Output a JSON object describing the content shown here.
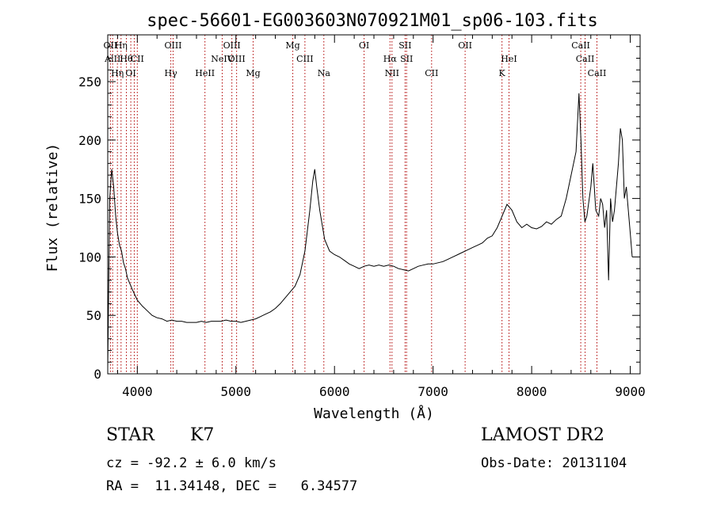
{
  "chart_data": {
    "type": "line",
    "title": "spec-56601-EG003603N070921M01_sp06-103.fits",
    "xlabel": "Wavelength (Å)",
    "ylabel": "Flux (relative)",
    "xlim": [
      3700,
      9100
    ],
    "ylim": [
      0,
      290
    ],
    "x_ticks": [
      4000,
      5000,
      6000,
      7000,
      8000,
      9000
    ],
    "y_ticks": [
      0,
      50,
      100,
      150,
      200,
      250
    ],
    "grid": false,
    "line_color": "#000000",
    "marker_color": "#b00000",
    "series": [
      {
        "x": [
          3700,
          3720,
          3740,
          3760,
          3780,
          3800,
          3820,
          3840,
          3860,
          3880,
          3900,
          3950,
          4000,
          4050,
          4100,
          4150,
          4200,
          4250,
          4300,
          4350,
          4400,
          4450,
          4500,
          4550,
          4600,
          4650,
          4700,
          4750,
          4800,
          4850,
          4900,
          4950,
          5000,
          5050,
          5100,
          5150,
          5200,
          5250,
          5300,
          5350,
          5400,
          5450,
          5500,
          5550,
          5600,
          5650,
          5700,
          5750,
          5780,
          5800,
          5820,
          5850,
          5900,
          5950,
          6000,
          6050,
          6100,
          6150,
          6200,
          6250,
          6300,
          6350,
          6400,
          6450,
          6500,
          6550,
          6600,
          6650,
          6700,
          6750,
          6800,
          6850,
          6900,
          6950,
          7000,
          7050,
          7100,
          7150,
          7200,
          7250,
          7300,
          7350,
          7400,
          7450,
          7500,
          7550,
          7600,
          7650,
          7700,
          7750,
          7800,
          7850,
          7900,
          7950,
          8000,
          8050,
          8100,
          8150,
          8200,
          8250,
          8300,
          8350,
          8400,
          8450,
          8480,
          8500,
          8520,
          8540,
          8560,
          8600,
          8620,
          8650,
          8680,
          8700,
          8720,
          8740,
          8760,
          8780,
          8800,
          8820,
          8840,
          8860,
          8880,
          8900,
          8920,
          8940,
          8960,
          8980,
          9000,
          9020
        ],
        "values": [
          5,
          150,
          175,
          160,
          135,
          120,
          110,
          105,
          95,
          90,
          82,
          72,
          63,
          58,
          54,
          50,
          48,
          47,
          45,
          46,
          45,
          45,
          44,
          44,
          44,
          45,
          44,
          45,
          45,
          45,
          46,
          45,
          45,
          44,
          45,
          46,
          47,
          49,
          51,
          53,
          56,
          60,
          65,
          70,
          75,
          85,
          105,
          140,
          165,
          175,
          160,
          140,
          115,
          105,
          102,
          100,
          97,
          94,
          92,
          90,
          92,
          93,
          92,
          93,
          92,
          93,
          92,
          90,
          89,
          88,
          90,
          92,
          93,
          94,
          94,
          95,
          96,
          98,
          100,
          102,
          104,
          106,
          108,
          110,
          112,
          116,
          118,
          125,
          135,
          145,
          140,
          130,
          125,
          128,
          125,
          124,
          126,
          130,
          128,
          132,
          135,
          150,
          170,
          190,
          240,
          200,
          150,
          130,
          135,
          160,
          180,
          140,
          135,
          150,
          145,
          125,
          140,
          80,
          150,
          130,
          140,
          160,
          180,
          210,
          200,
          150,
          160,
          140,
          120,
          100
        ]
      }
    ],
    "line_markers": [
      {
        "x": 3727,
        "label": "OII"
      },
      {
        "x": 3750,
        "label": "AlII"
      },
      {
        "x": 3798,
        "label": "Hη"
      },
      {
        "x": 3835,
        "label": "Hη"
      },
      {
        "x": 3889,
        "label": "Hθ"
      },
      {
        "x": 3934,
        "label": "OI"
      },
      {
        "x": 3969,
        "label": ""
      },
      {
        "x": 4000,
        "label": "CII"
      },
      {
        "x": 4340,
        "label": "Hγ"
      },
      {
        "x": 4363,
        "label": "OIII"
      },
      {
        "x": 4861,
        "label": "NeIV"
      },
      {
        "x": 4686,
        "label": "HeII"
      },
      {
        "x": 4959,
        "label": "OIII"
      },
      {
        "x": 5007,
        "label": "OIII"
      },
      {
        "x": 5175,
        "label": "Mg"
      },
      {
        "x": 5577,
        "label": "Mg"
      },
      {
        "x": 5700,
        "label": "CIII"
      },
      {
        "x": 5892,
        "label": "Na"
      },
      {
        "x": 6300,
        "label": "OI"
      },
      {
        "x": 6563,
        "label": "Hα"
      },
      {
        "x": 6583,
        "label": "NII"
      },
      {
        "x": 6716,
        "label": "SII"
      },
      {
        "x": 6731,
        "label": "SII"
      },
      {
        "x": 6985,
        "label": "CII"
      },
      {
        "x": 7325,
        "label": "OII"
      },
      {
        "x": 7770,
        "label": "HeI"
      },
      {
        "x": 7699,
        "label": "K"
      },
      {
        "x": 8498,
        "label": "CaII"
      },
      {
        "x": 8542,
        "label": "CaII"
      },
      {
        "x": 8662,
        "label": "CaII"
      }
    ]
  },
  "info": {
    "object_class": "STAR",
    "subclass": "K7",
    "redshift": "cz = -92.2 ± 6.0 km/s",
    "coords": "RA =  11.34148, DEC =   6.34577",
    "survey": "LAMOST DR2",
    "obs_date": "Obs-Date: 20131104"
  }
}
